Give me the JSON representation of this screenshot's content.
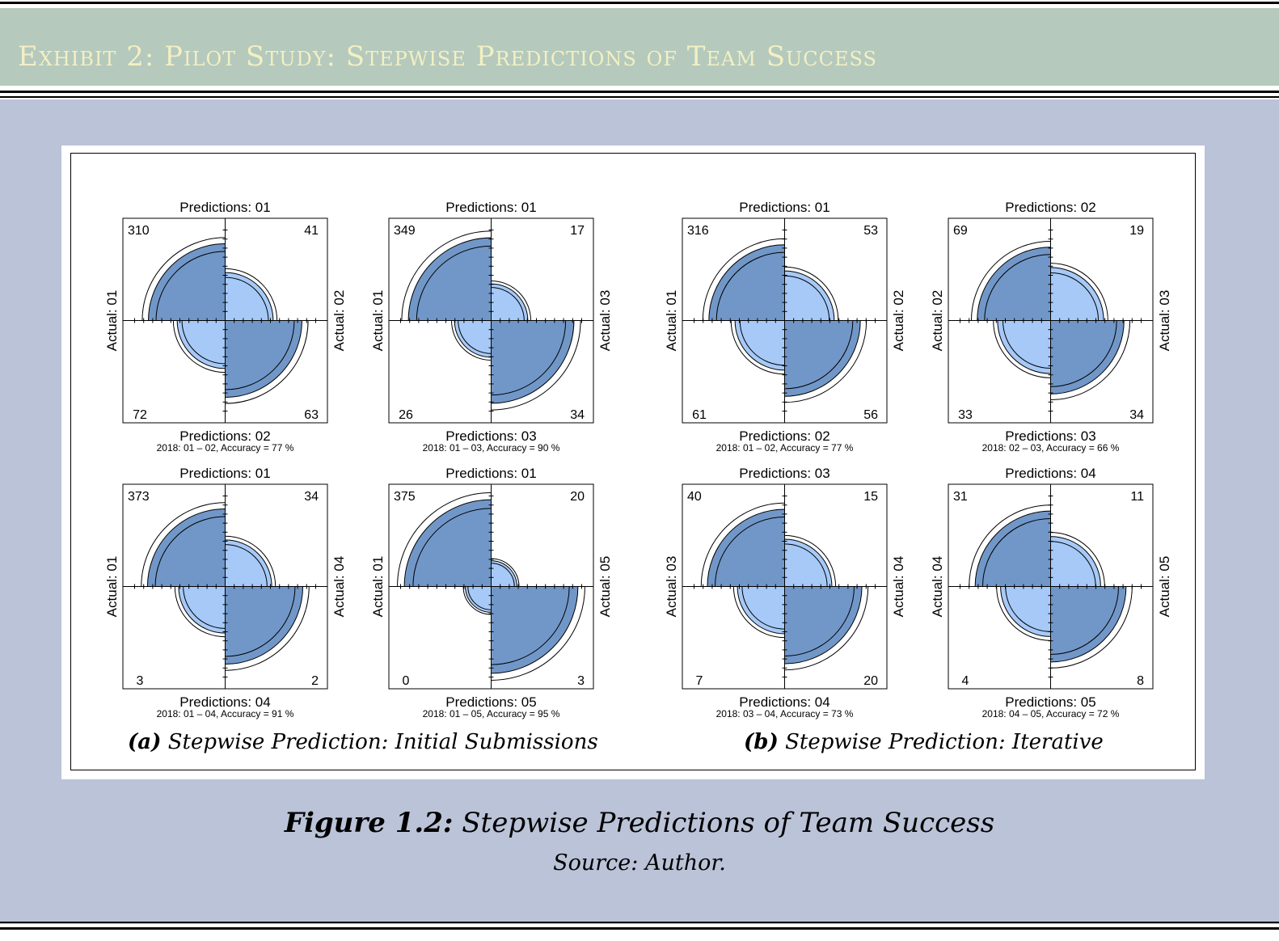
{
  "header": {
    "title": "Exhibit 2: Pilot Study: Stepwise Predictions of Team Success"
  },
  "captions": {
    "a_label": "(a)",
    "a_text": "Stepwise Prediction: Initial Submissions",
    "b_label": "(b)",
    "b_text": "Stepwise Prediction: Iterative",
    "figure_label": "Figure 1.2:",
    "figure_text": "Stepwise Predictions of Team Success",
    "source": "Source: Author."
  },
  "colors": {
    "diagonal": "#7197c8",
    "offdiagonal": "#a6c9f7",
    "header_bg": "#b5c9bd",
    "header_text": "#f3f0c2",
    "panel_bg": "#bbc3d8"
  },
  "chart_data": [
    {
      "type": "fourfold",
      "top": "Predictions: 01",
      "bottom": "Predictions: 02",
      "left": "Actual: 01",
      "right": "Actual: 02",
      "counts": {
        "tl": 310,
        "tr": 41,
        "bl": 72,
        "br": 63
      },
      "subtitle": "2018: 01 – 02, Accuracy = 77 %"
    },
    {
      "type": "fourfold",
      "top": "Predictions: 01",
      "bottom": "Predictions: 03",
      "left": "Actual: 01",
      "right": "Actual: 03",
      "counts": {
        "tl": 349,
        "tr": 17,
        "bl": 26,
        "br": 34
      },
      "subtitle": "2018: 01 – 03, Accuracy = 90 %"
    },
    {
      "type": "fourfold",
      "top": "Predictions: 01",
      "bottom": "Predictions: 02",
      "left": "Actual: 01",
      "right": "Actual: 02",
      "counts": {
        "tl": 316,
        "tr": 53,
        "bl": 61,
        "br": 56
      },
      "subtitle": "2018: 01 – 02, Accuracy = 77 %"
    },
    {
      "type": "fourfold",
      "top": "Predictions: 02",
      "bottom": "Predictions: 03",
      "left": "Actual: 02",
      "right": "Actual: 03",
      "counts": {
        "tl": 69,
        "tr": 19,
        "bl": 33,
        "br": 34
      },
      "subtitle": "2018: 02 – 03, Accuracy = 66 %"
    },
    {
      "type": "fourfold",
      "top": "Predictions: 01",
      "bottom": "Predictions: 04",
      "left": "Actual: 01",
      "right": "Actual: 04",
      "counts": {
        "tl": 373,
        "tr": 34,
        "bl": 3,
        "br": 2
      },
      "subtitle": "2018: 01 – 04, Accuracy = 91 %"
    },
    {
      "type": "fourfold",
      "top": "Predictions: 01",
      "bottom": "Predictions: 05",
      "left": "Actual: 01",
      "right": "Actual: 05",
      "counts": {
        "tl": 375,
        "tr": 20,
        "bl": 0,
        "br": 3
      },
      "subtitle": "2018: 01 – 05, Accuracy = 95 %"
    },
    {
      "type": "fourfold",
      "top": "Predictions: 03",
      "bottom": "Predictions: 04",
      "left": "Actual: 03",
      "right": "Actual: 04",
      "counts": {
        "tl": 40,
        "tr": 15,
        "bl": 7,
        "br": 20
      },
      "subtitle": "2018: 03 – 04, Accuracy = 73 %"
    },
    {
      "type": "fourfold",
      "top": "Predictions: 04",
      "bottom": "Predictions: 05",
      "left": "Actual: 04",
      "right": "Actual: 05",
      "counts": {
        "tl": 31,
        "tr": 11,
        "bl": 4,
        "br": 8
      },
      "subtitle": "2018: 04 – 05, Accuracy = 72 %"
    }
  ]
}
